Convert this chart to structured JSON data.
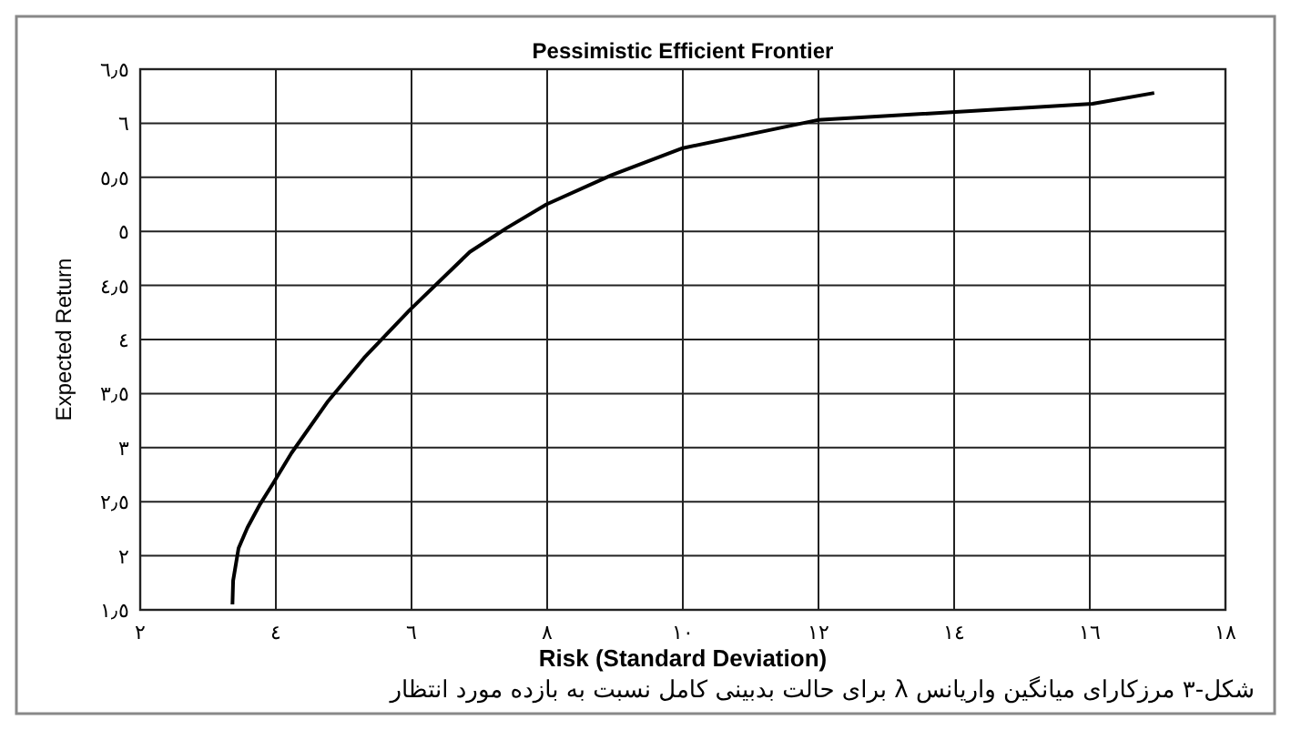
{
  "chart_data": {
    "type": "line",
    "title": "Pessimistic Efficient Frontier",
    "xlabel": "Risk (Standard Deviation)",
    "ylabel": "Expected Return",
    "annotations": [
      "شکل-۳ مرزکارای میانگین واریانس λ برای حالت بدبینی کامل نسبت به بازده مورد انتظار"
    ],
    "x": [
      3.36,
      3.37,
      3.45,
      3.58,
      3.77,
      3.96,
      4.23,
      4.77,
      5.3,
      5.97,
      6.86,
      7.4,
      7.99,
      8.95,
      10.0,
      11.99,
      16.04,
      16.95
    ],
    "series": [
      {
        "color": "#000000",
        "values": [
          1.55,
          1.77,
          2.07,
          2.26,
          2.48,
          2.67,
          2.95,
          3.43,
          3.83,
          4.27,
          4.81,
          5.03,
          5.25,
          5.52,
          5.77,
          6.03,
          6.18,
          6.28
        ]
      }
    ],
    "xlim": [
      2,
      18
    ],
    "ylim": [
      1.5,
      6.5
    ],
    "xticks": [
      {
        "value": 2,
        "label": "٢"
      },
      {
        "value": 4,
        "label": "٤"
      },
      {
        "value": 6,
        "label": "٦"
      },
      {
        "value": 8,
        "label": "٨"
      },
      {
        "value": 10,
        "label": "١٠"
      },
      {
        "value": 12,
        "label": "١٢"
      },
      {
        "value": 14,
        "label": "١٤"
      },
      {
        "value": 16,
        "label": "١٦"
      },
      {
        "value": 18,
        "label": "١٨"
      }
    ],
    "yticks": [
      {
        "value": 1.5,
        "label": "١٫٥"
      },
      {
        "value": 2,
        "label": "٢"
      },
      {
        "value": 2.5,
        "label": "٢٫٥"
      },
      {
        "value": 3,
        "label": "٣"
      },
      {
        "value": 3.5,
        "label": "٣٫٥"
      },
      {
        "value": 4,
        "label": "٤"
      },
      {
        "value": 4.5,
        "label": "٤٫٥"
      },
      {
        "value": 5,
        "label": "٥"
      },
      {
        "value": 5.5,
        "label": "٥٫٥"
      },
      {
        "value": 6,
        "label": "٦"
      },
      {
        "value": 6.5,
        "label": "٦٫٥"
      }
    ],
    "grid": true,
    "marker": "none",
    "line_style": "solid"
  }
}
